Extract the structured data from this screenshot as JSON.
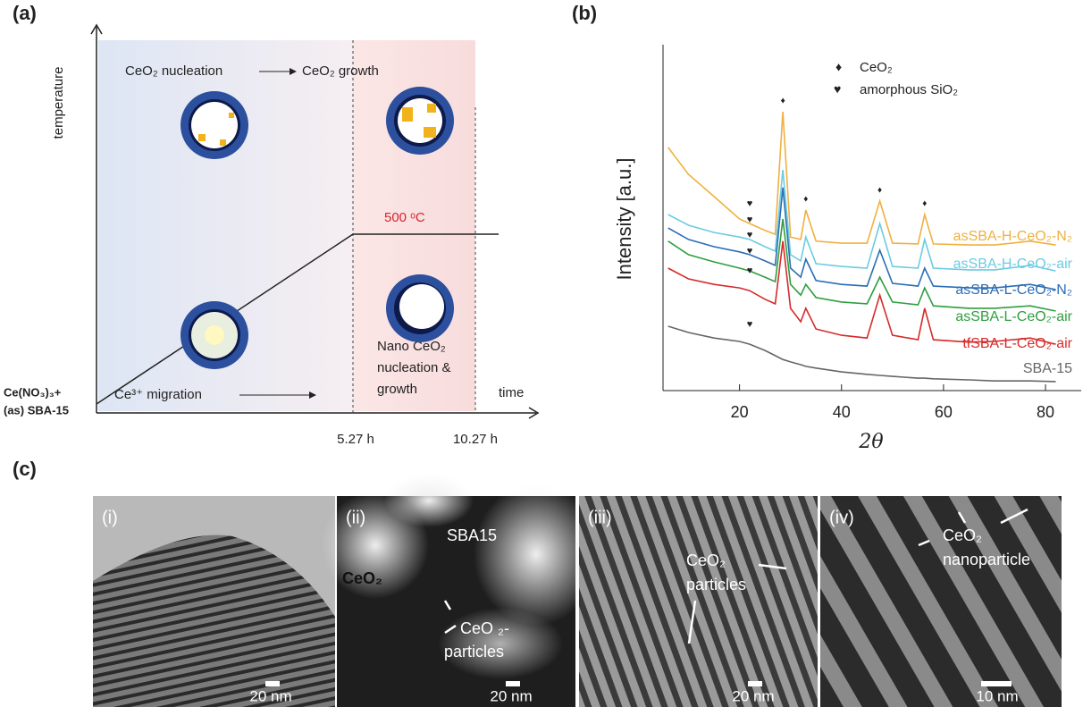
{
  "panel_labels": [
    "(a)",
    "(b)",
    "(c)"
  ],
  "panel_a": {
    "y_axis_label": "temperature",
    "stage_1": "CeO₂ nucleation",
    "stage_2": "CeO₂ growth",
    "temperature_label": "500 ᵒC",
    "start_line_1": "Ce(NO₃)₃+",
    "start_line_2": "(as) SBA-15",
    "migration": "Ce³⁺ migration",
    "nano_lines": [
      "Nano CeO₂",
      "nucleation &",
      "growth"
    ],
    "x_axis_label": "time",
    "time_ticks": [
      "5.27 h",
      "10.27 h"
    ]
  },
  "chart_data": {
    "type": "line",
    "x_label": "2θ",
    "y_label": "Intensity [a.u.]",
    "x": [
      6,
      10,
      15,
      20,
      22,
      25,
      27,
      28.5,
      30,
      32,
      33,
      35,
      40,
      45,
      47.5,
      50,
      55,
      56.3,
      58,
      65,
      70,
      77,
      82
    ],
    "xlim": [
      5,
      87
    ],
    "ylim": [
      0,
      100
    ],
    "xticks": [
      20,
      40,
      60,
      80
    ],
    "markers": [
      {
        "symbol": "♦",
        "label": "CeO₂"
      },
      {
        "symbol": "♥",
        "label": "amorphous SiO₂"
      }
    ],
    "series": [
      {
        "name": "asSBA-H-CeO₂-N₂",
        "color": "#f0b040",
        "values": [
          70.3,
          62.5,
          56.1,
          49.6,
          48.3,
          46.3,
          45.2,
          80.6,
          44.4,
          43.7,
          52.2,
          43.2,
          42.6,
          42.6,
          54.8,
          42.6,
          42.4,
          50.9,
          42.4,
          42.1,
          42.1,
          43.2,
          42.1
        ]
      },
      {
        "name": "asSBA-H-CeO₂-air",
        "color": "#6ccbe2",
        "values": [
          50.9,
          47.8,
          45.7,
          44.4,
          43.7,
          41.6,
          40.3,
          63.8,
          39.3,
          37.5,
          44.4,
          36.7,
          35.9,
          35.4,
          48.3,
          35.9,
          35.4,
          43.7,
          35.4,
          34.9,
          34.9,
          36.2,
          34.6
        ]
      },
      {
        "name": "asSBA-L-CeO₂-N₂",
        "color": "#2a6db5",
        "values": [
          47.0,
          43.7,
          41.6,
          40.1,
          39.3,
          37.5,
          36.2,
          58.7,
          35.4,
          32.8,
          38.0,
          31.8,
          30.7,
          30.2,
          40.6,
          31.0,
          30.2,
          35.4,
          30.2,
          29.7,
          29.7,
          30.7,
          29.2
        ]
      },
      {
        "name": "asSBA-L-CeO₂-air",
        "color": "#2e9e3e",
        "values": [
          43.2,
          39.3,
          37.2,
          35.4,
          34.6,
          32.8,
          31.5,
          49.6,
          30.7,
          27.6,
          30.7,
          26.9,
          25.6,
          25.1,
          32.8,
          25.6,
          24.8,
          29.7,
          24.5,
          23.8,
          23.8,
          24.5,
          23.0
        ]
      },
      {
        "name": "tfSBA-L-CeO₂-air",
        "color": "#d62a2a",
        "values": [
          35.4,
          32.3,
          30.7,
          29.7,
          28.9,
          26.4,
          25.1,
          43.2,
          23.8,
          19.9,
          23.8,
          17.8,
          16.0,
          15.2,
          27.6,
          16.0,
          14.7,
          23.8,
          14.7,
          14.0,
          14.2,
          15.2,
          13.4
        ]
      },
      {
        "name": "SBA-15",
        "color": "#666666",
        "values": [
          18.6,
          16.8,
          15.2,
          14.2,
          13.4,
          11.6,
          10.1,
          9.0,
          8.3,
          7.5,
          7.0,
          6.5,
          5.4,
          4.7,
          4.4,
          4.1,
          3.6,
          3.6,
          3.4,
          3.1,
          2.8,
          2.8,
          2.6
        ]
      }
    ]
  },
  "panel_c": {
    "images": [
      {
        "tag": "(i)",
        "scale": "20 nm",
        "labels": []
      },
      {
        "tag": "(ii)",
        "scale": "20 nm",
        "labels": [
          "SBA15",
          "CeO₂",
          "CeO ₂-",
          "particles"
        ]
      },
      {
        "tag": "(iii)",
        "scale": "20 nm",
        "labels": [
          "CeO₂",
          "particles"
        ]
      },
      {
        "tag": "(iv)",
        "scale": "10 nm",
        "labels": [
          "CeO₂",
          "nanoparticle"
        ]
      }
    ]
  }
}
